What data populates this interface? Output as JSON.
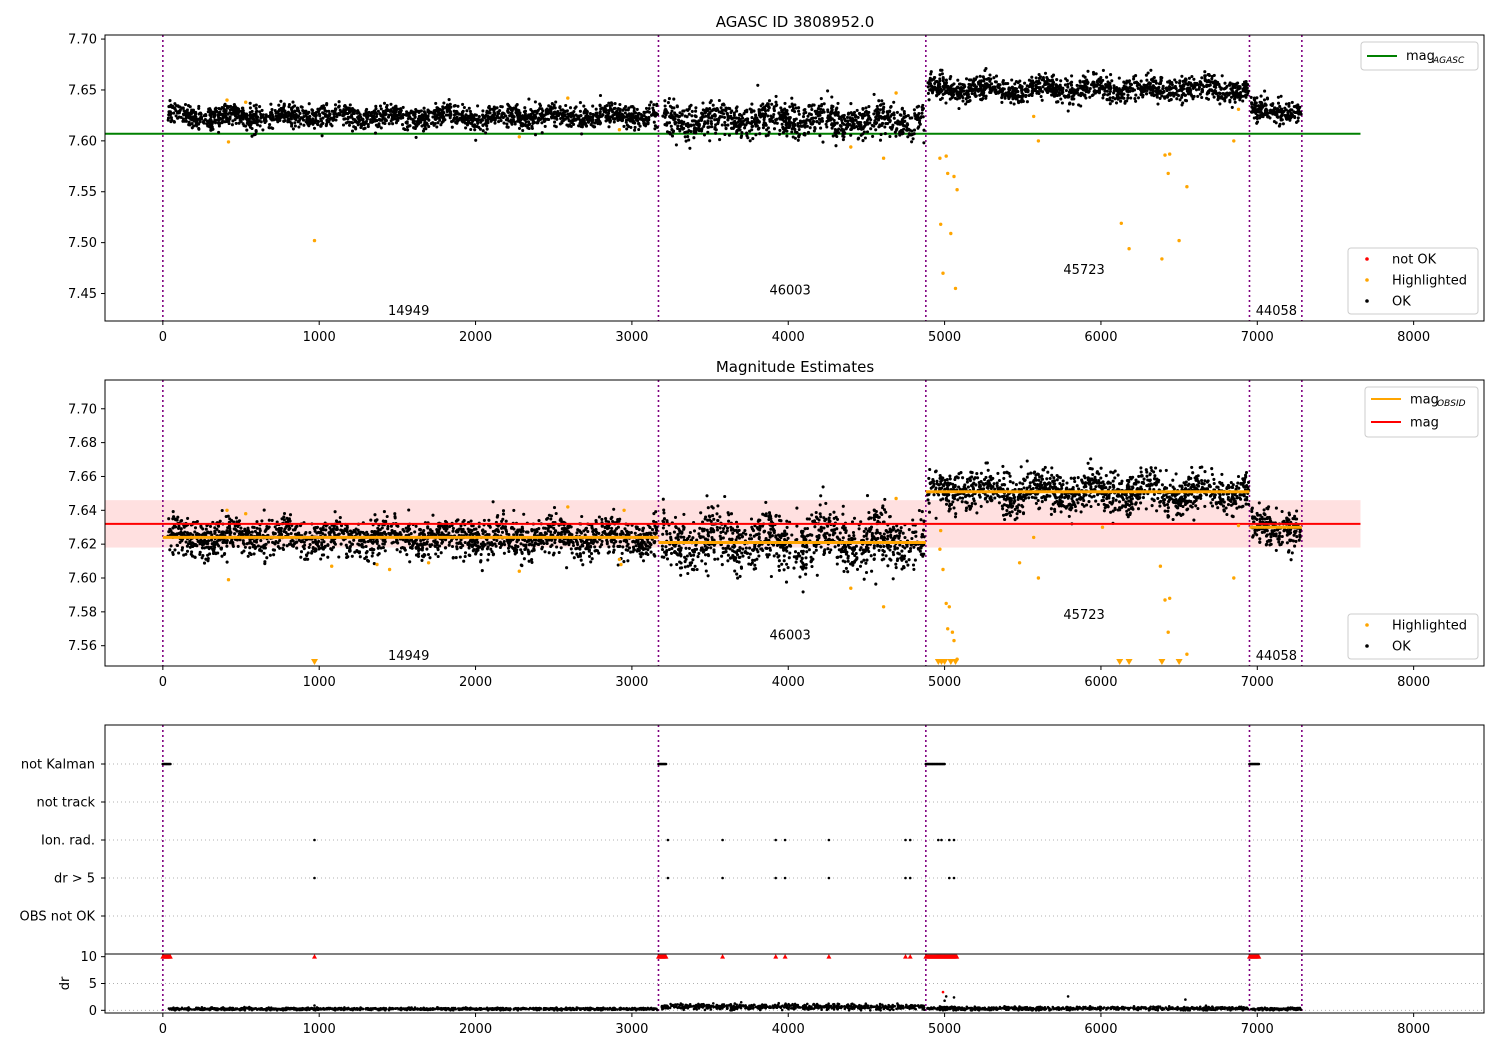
{
  "figure": {
    "panel1_title": "AGASC ID 3808952.0",
    "panel2_title": "Magnitude Estimates"
  },
  "legends": {
    "panel1": [
      {
        "label": "mag",
        "sub": "AGASC",
        "kind": "line",
        "color": "#008000"
      }
    ],
    "panel1_points": [
      {
        "label": "not OK",
        "color": "#ff0000"
      },
      {
        "label": "Highlighted",
        "color": "#ffa500"
      },
      {
        "label": "OK",
        "color": "#000000"
      }
    ],
    "panel2": [
      {
        "label": "mag",
        "sub": "OBSID",
        "kind": "line",
        "color": "#ffa500"
      },
      {
        "label": "mag",
        "sub": "",
        "kind": "line",
        "color": "#ff0000"
      }
    ],
    "panel2_points": [
      {
        "label": "Highlighted",
        "color": "#ffa500"
      },
      {
        "label": "OK",
        "color": "#000000"
      }
    ]
  },
  "chart_data": [
    {
      "type": "scatter",
      "title": "AGASC ID 3808952.0",
      "xlim": [
        -370,
        8450
      ],
      "ylim": [
        7.423,
        7.704
      ],
      "xticks": [
        0,
        1000,
        2000,
        3000,
        4000,
        5000,
        6000,
        7000,
        8000
      ],
      "yticks": [
        7.45,
        7.5,
        7.55,
        7.6,
        7.65,
        7.7
      ],
      "observation_boundaries": [
        0,
        3170,
        4880,
        6950,
        7285
      ],
      "observation_labels": [
        {
          "text": "14949",
          "x": 1440,
          "y": 7.433
        },
        {
          "text": "46003",
          "x": 3880,
          "y": 7.453
        },
        {
          "text": "45723",
          "x": 5760,
          "y": 7.473
        },
        {
          "text": "44058",
          "x": 6990,
          "y": 7.433
        }
      ],
      "reference_lines": [
        {
          "name": "mag_AGASC",
          "y": 7.607,
          "x": [
            -370,
            7660
          ],
          "color": "#008000"
        }
      ],
      "ok_segments": [
        {
          "x": [
            30,
            3165
          ],
          "mean": 7.624,
          "sd": 0.0055
        },
        {
          "x": [
            3190,
            4870
          ],
          "mean": 7.621,
          "sd": 0.0085
        },
        {
          "x": [
            4890,
            6945
          ],
          "mean": 7.651,
          "sd": 0.006
        },
        {
          "x": [
            6960,
            7280
          ],
          "mean": 7.629,
          "sd": 0.0055
        }
      ],
      "highlighted_points": [
        [
          420,
          7.599
        ],
        [
          970,
          7.502
        ],
        [
          410,
          7.64
        ],
        [
          530,
          7.638
        ],
        [
          2280,
          7.604
        ],
        [
          2590,
          7.642
        ],
        [
          2920,
          7.611
        ],
        [
          4400,
          7.594
        ],
        [
          4610,
          7.583
        ],
        [
          4690,
          7.647
        ],
        [
          4970,
          7.583
        ],
        [
          4975,
          7.518
        ],
        [
          4990,
          7.47
        ],
        [
          5010,
          7.585
        ],
        [
          5020,
          7.568
        ],
        [
          5040,
          7.509
        ],
        [
          5060,
          7.565
        ],
        [
          5080,
          7.552
        ],
        [
          5070,
          7.455
        ],
        [
          5600,
          7.6
        ],
        [
          5570,
          7.624
        ],
        [
          6130,
          7.519
        ],
        [
          6180,
          7.494
        ],
        [
          6390,
          7.484
        ],
        [
          6410,
          7.586
        ],
        [
          6440,
          7.587
        ],
        [
          6430,
          7.568
        ],
        [
          6500,
          7.502
        ],
        [
          6550,
          7.555
        ],
        [
          6850,
          7.6
        ],
        [
          6880,
          7.631
        ]
      ],
      "legend": [
        "mag_AGASC",
        "not OK",
        "Highlighted",
        "OK"
      ]
    },
    {
      "type": "scatter",
      "title": "Magnitude Estimates",
      "xlim": [
        -370,
        8450
      ],
      "ylim": [
        7.548,
        7.717
      ],
      "xticks": [
        0,
        1000,
        2000,
        3000,
        4000,
        5000,
        6000,
        7000,
        8000
      ],
      "yticks": [
        7.56,
        7.58,
        7.6,
        7.62,
        7.64,
        7.66,
        7.68,
        7.7
      ],
      "observation_boundaries": [
        0,
        3170,
        4880,
        6950,
        7285
      ],
      "observation_labels": [
        {
          "text": "14949",
          "x": 1440,
          "y": 7.554
        },
        {
          "text": "46003",
          "x": 3880,
          "y": 7.566
        },
        {
          "text": "45723",
          "x": 5760,
          "y": 7.578
        },
        {
          "text": "44058",
          "x": 6990,
          "y": 7.554
        }
      ],
      "reference_lines": [
        {
          "name": "mag",
          "y": 7.632,
          "x": [
            -370,
            7660
          ],
          "color": "#ff0000",
          "band": [
            7.618,
            7.646
          ]
        }
      ],
      "obsid_means": [
        {
          "x": [
            0,
            3170
          ],
          "y": 7.624
        },
        {
          "x": [
            3170,
            4880
          ],
          "y": 7.621
        },
        {
          "x": [
            4880,
            6950
          ],
          "y": 7.651
        },
        {
          "x": [
            6950,
            7285
          ],
          "y": 7.63
        }
      ],
      "ok_segments": [
        {
          "x": [
            30,
            3165
          ],
          "mean": 7.624,
          "sd": 0.0055
        },
        {
          "x": [
            3190,
            4870
          ],
          "mean": 7.621,
          "sd": 0.0085
        },
        {
          "x": [
            4890,
            6945
          ],
          "mean": 7.651,
          "sd": 0.006
        },
        {
          "x": [
            6960,
            7280
          ],
          "mean": 7.629,
          "sd": 0.0055
        }
      ],
      "highlighted_points": [
        [
          420,
          7.599
        ],
        [
          410,
          7.64
        ],
        [
          530,
          7.638
        ],
        [
          1080,
          7.607
        ],
        [
          1370,
          7.608
        ],
        [
          1450,
          7.605
        ],
        [
          1700,
          7.609
        ],
        [
          2280,
          7.604
        ],
        [
          2590,
          7.642
        ],
        [
          2920,
          7.611
        ],
        [
          2930,
          7.608
        ],
        [
          2950,
          7.64
        ],
        [
          4400,
          7.594
        ],
        [
          4610,
          7.583
        ],
        [
          4690,
          7.647
        ],
        [
          4970,
          7.617
        ],
        [
          4990,
          7.605
        ],
        [
          4975,
          7.628
        ],
        [
          5010,
          7.585
        ],
        [
          5020,
          7.57
        ],
        [
          5030,
          7.583
        ],
        [
          5050,
          7.568
        ],
        [
          5060,
          7.563
        ],
        [
          5080,
          7.552
        ],
        [
          5480,
          7.609
        ],
        [
          5600,
          7.6
        ],
        [
          5570,
          7.624
        ],
        [
          6010,
          7.63
        ],
        [
          6380,
          7.607
        ],
        [
          6410,
          7.587
        ],
        [
          6440,
          7.588
        ],
        [
          6430,
          7.568
        ],
        [
          6550,
          7.555
        ],
        [
          6850,
          7.6
        ],
        [
          6880,
          7.631
        ]
      ],
      "clipped_points_x": [
        970,
        4960,
        4980,
        5000,
        5040,
        5070,
        6120,
        6180,
        6390,
        6500
      ],
      "legend": [
        "mag_OBSID",
        "mag",
        "Highlighted",
        "OK"
      ]
    },
    {
      "type": "scatter",
      "categories": [
        "not Kalman",
        "not track",
        "Ion. rad.",
        "dr > 5",
        "OBS not OK"
      ],
      "xlim": [
        -370,
        8450
      ],
      "observation_boundaries": [
        0,
        3170,
        4880,
        6950,
        7285
      ],
      "flags": {
        "not Kalman": [
          [
            0,
            50
          ],
          [
            3170,
            3220
          ],
          [
            4880,
            5000
          ],
          [
            6950,
            7010
          ]
        ],
        "not track": [],
        "Ion. rad.": [
          970,
          3230,
          3580,
          3920,
          3980,
          4260,
          4750,
          4780,
          4960,
          4980,
          5030,
          5060
        ],
        "dr > 5": [
          970,
          3230,
          3580,
          3920,
          3980,
          4260,
          4750,
          4780,
          5030,
          5060
        ],
        "OBS not OK": []
      }
    },
    {
      "type": "scatter",
      "ylabel": "dr",
      "xlim": [
        -370,
        8450
      ],
      "ylim": [
        -0.5,
        10.5
      ],
      "xticks": [
        0,
        1000,
        2000,
        3000,
        4000,
        5000,
        6000,
        7000,
        8000
      ],
      "yticks": [
        0,
        5,
        10
      ],
      "observation_boundaries": [
        0,
        3170,
        4880,
        6950,
        7285
      ],
      "ok_level_segments": [
        {
          "x": [
            30,
            3165
          ],
          "mean": 0.25
        },
        {
          "x": [
            3190,
            4870
          ],
          "mean": 0.65
        },
        {
          "x": [
            4890,
            6945
          ],
          "mean": 0.35
        },
        {
          "x": [
            6960,
            7280
          ],
          "mean": 0.25
        }
      ],
      "clipped_red_x": [
        [
          0,
          50
        ],
        [
          3170,
          3220
        ],
        [
          4880,
          5080
        ],
        [
          6950,
          7010
        ],
        970,
        3580,
        3920,
        3980,
        4260,
        4750,
        4780
      ],
      "outliers": [
        [
          4990,
          3.4
        ],
        [
          5010,
          2.6
        ],
        [
          5060,
          2.4
        ],
        [
          5790,
          2.6
        ],
        [
          6540,
          2.0
        ],
        [
          5000,
          1.8
        ],
        [
          970,
          0.9
        ]
      ]
    }
  ]
}
